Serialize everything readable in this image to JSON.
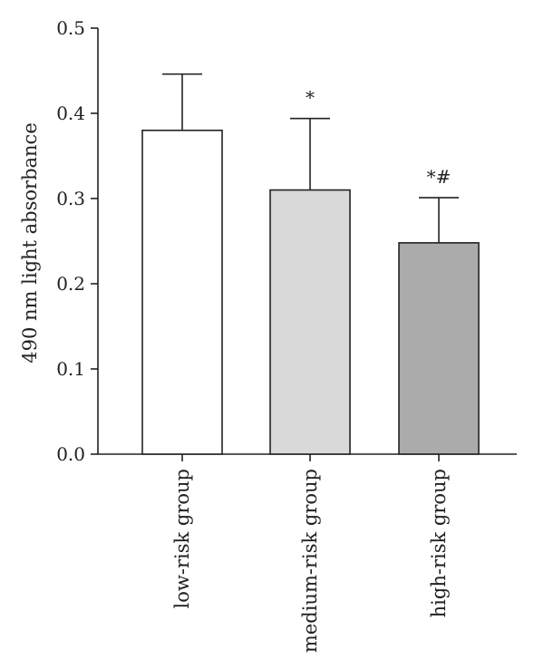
{
  "chart_data": {
    "type": "bar",
    "ylabel": "490 nm light absorbance",
    "ylim": [
      0,
      0.5
    ],
    "yticks": [
      "0.0",
      "0.1",
      "0.2",
      "0.3",
      "0.4",
      "0.5"
    ],
    "categories": [
      "low-risk group",
      "medium-risk group",
      "high-risk group"
    ],
    "values": [
      0.38,
      0.31,
      0.248
    ],
    "error_upper": [
      0.446,
      0.394,
      0.301
    ],
    "bar_colors": [
      "#ffffff",
      "#d9d9d9",
      "#ababab"
    ],
    "annotations": [
      "",
      "*",
      "*#"
    ],
    "grid": false
  }
}
